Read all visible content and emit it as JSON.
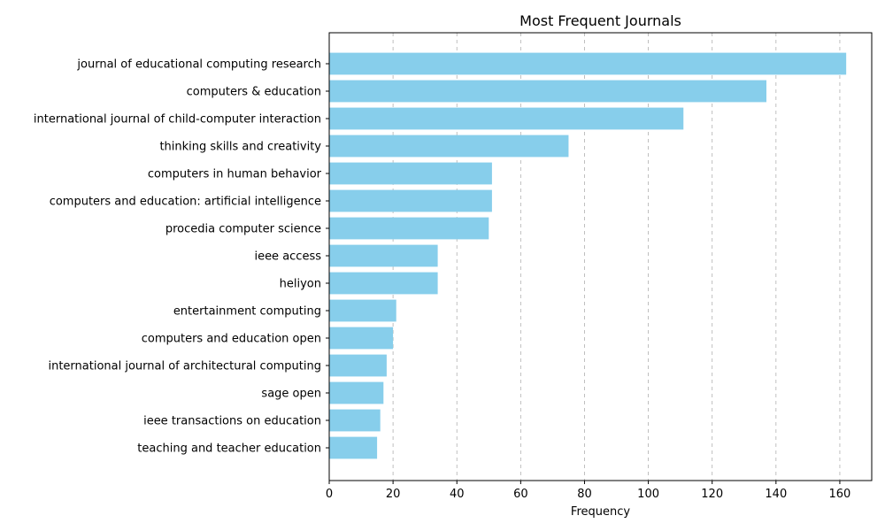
{
  "chart_data": {
    "type": "bar",
    "orientation": "horizontal",
    "title": "Most Frequent Journals",
    "xlabel": "Frequency",
    "ylabel": "",
    "xlim": [
      0,
      170
    ],
    "xticks": [
      0,
      20,
      40,
      60,
      80,
      100,
      120,
      140,
      160
    ],
    "grid": "x-dashed",
    "bar_color": "#87ceeb",
    "categories": [
      "journal of educational computing research",
      "computers & education",
      "international journal of child-computer interaction",
      "thinking skills and creativity",
      "computers in human behavior",
      "computers and education: artificial intelligence",
      "procedia computer science",
      "ieee access",
      "heliyon",
      "entertainment computing",
      "computers and education open",
      "international journal of architectural computing",
      "sage open",
      "ieee transactions on education",
      "teaching and teacher education"
    ],
    "values": [
      162,
      137,
      111,
      75,
      51,
      51,
      50,
      34,
      34,
      21,
      20,
      18,
      17,
      16,
      15
    ]
  }
}
